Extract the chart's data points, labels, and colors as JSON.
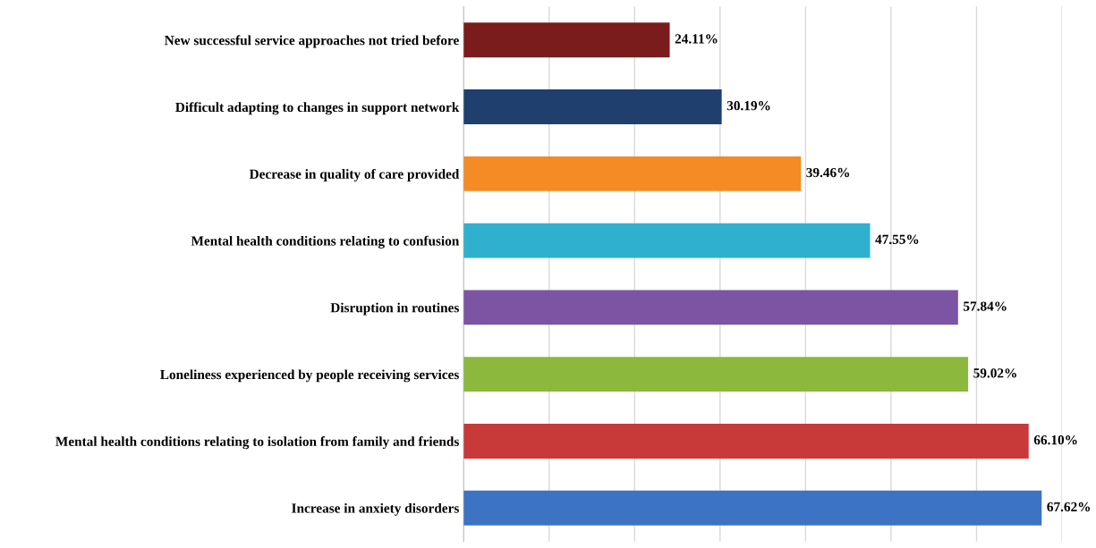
{
  "chart_data": {
    "type": "bar",
    "orientation": "horizontal",
    "categories": [
      "New successful service approaches not tried before",
      "Difficult adapting to changes in support network",
      "Decrease in quality of care provided",
      "Mental health conditions relating to confusion",
      "Disruption in routines",
      "Loneliness experienced by people receiving services",
      "Mental health conditions relating to isolation from family and friends",
      "Increase in anxiety disorders"
    ],
    "values": [
      24.11,
      30.19,
      39.46,
      47.55,
      57.84,
      59.02,
      66.1,
      67.62
    ],
    "value_labels": [
      "24.11%",
      "30.19%",
      "39.46%",
      "47.55%",
      "57.84%",
      "59.02%",
      "66.10%",
      "67.62%"
    ],
    "colors": [
      "#7a1c1c",
      "#1f3f6e",
      "#f48b24",
      "#2fb0cf",
      "#7b55a3",
      "#8bb83d",
      "#c83a3a",
      "#3c73c2"
    ],
    "xlim": [
      0,
      70
    ],
    "xticks": [
      {
        "value": 0,
        "label": null
      },
      {
        "value": 10,
        "label": null
      },
      {
        "value": 20,
        "label": null
      },
      {
        "value": 30,
        "label": null
      },
      {
        "value": 40,
        "label": null
      },
      {
        "value": 50,
        "label": null
      },
      {
        "value": 60,
        "label": null
      },
      {
        "value": 70,
        "label": null
      }
    ],
    "grid": "x",
    "tick_labels": "y"
  }
}
